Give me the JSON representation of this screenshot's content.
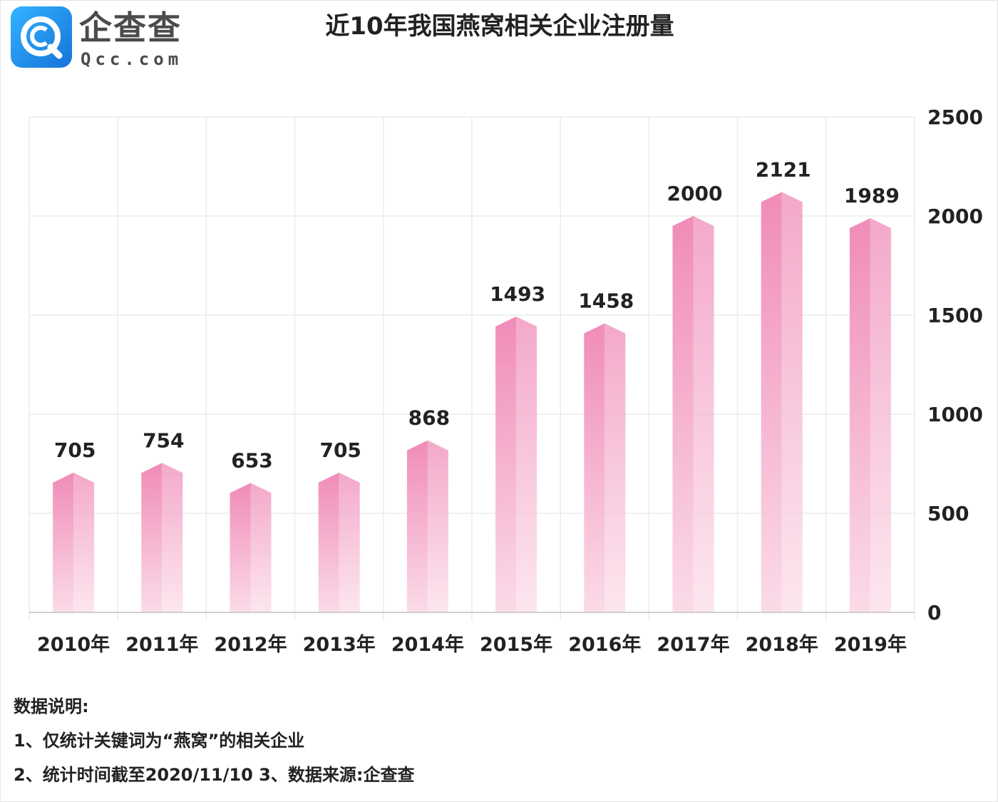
{
  "header": {
    "logo_cn": "企查查",
    "logo_en": "Qcc.com",
    "title": "近10年我国燕窝相关企业注册量"
  },
  "chart_data": {
    "type": "bar",
    "title": "近10年我国燕窝相关企业注册量",
    "xlabel": "",
    "ylabel": "",
    "categories": [
      "2010年",
      "2011年",
      "2012年",
      "2013年",
      "2014年",
      "2015年",
      "2016年",
      "2017年",
      "2018年",
      "2019年"
    ],
    "values": [
      705,
      754,
      653,
      705,
      868,
      1493,
      1458,
      2000,
      2121,
      1989
    ],
    "data_labels": [
      "705",
      "754",
      "653",
      "705",
      "868",
      "1493",
      "1458",
      "2000",
      "2121",
      "1989"
    ],
    "ylim": [
      0,
      2500
    ],
    "y_ticks": [
      "0",
      "500",
      "1000",
      "1500",
      "2000",
      "2500"
    ],
    "y_axis_side": "right",
    "grid": true,
    "bar_color_top": "#f08cb8",
    "bar_color_bottom": "#fbdbe8"
  },
  "notes": {
    "heading": "数据说明:",
    "line1": "1、仅统计关键词为“燕窝”的相关企业",
    "line2": "2、统计时间截至2020/11/10   3、数据来源:企查查"
  }
}
